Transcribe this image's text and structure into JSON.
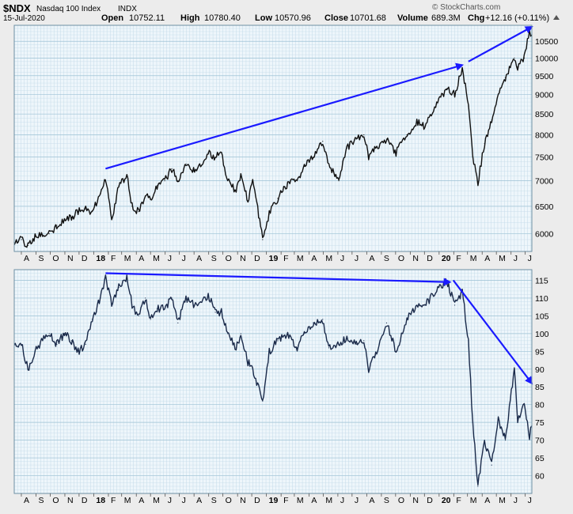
{
  "header": {
    "symbol": "$NDX",
    "name": "Nasdaq 100 Index",
    "exchange": "INDX",
    "date": "15-Jul-2020",
    "watermark": "© StockCharts.com",
    "open_label": "Open",
    "open_value": "10752.11",
    "high_label": "High",
    "high_value": "10780.40",
    "low_label": "Low",
    "low_value": "10570.96",
    "close_label": "Close",
    "close_value": "10701.68",
    "volume_label": "Volume",
    "volume_value": "689.3M",
    "chg_label": "Chg",
    "chg_value": "+12.16 (+0.11%)",
    "chg_direction_icon": "triangle-up-icon"
  },
  "x_axis_labels": [
    "A",
    "S",
    "O",
    "N",
    "D",
    "18",
    "F",
    "M",
    "A",
    "M",
    "J",
    "J",
    "A",
    "S",
    "O",
    "N",
    "D",
    "19",
    "F",
    "M",
    "A",
    "M",
    "J",
    "J",
    "A",
    "S",
    "O",
    "N",
    "D",
    "20",
    "F",
    "M",
    "A",
    "M",
    "J",
    "J"
  ],
  "x_axis_bold": [
    "18",
    "19",
    "20"
  ],
  "colors": {
    "panel_bg": "#eef6fb",
    "grid": "#c4dbe8",
    "price_line": "#111111",
    "lower_line": "#1a2a4a",
    "trend_arrow": "#1a1aff",
    "page_bg": "#ececec"
  },
  "chart_data": [
    {
      "type": "line",
      "panel": "price",
      "scale": "log",
      "ylim": [
        5700,
        11000
      ],
      "yticks": [
        6000,
        6500,
        7000,
        7500,
        8000,
        8500,
        9000,
        9500,
        10000,
        10500
      ],
      "x_start": "2017-07-17",
      "x_end": "2020-07-15",
      "points": [
        [
          "2017-07-17",
          5850
        ],
        [
          "2017-08-01",
          5900
        ],
        [
          "2017-08-15",
          5800
        ],
        [
          "2017-08-30",
          5950
        ],
        [
          "2017-09-15",
          5980
        ],
        [
          "2017-09-29",
          6000
        ],
        [
          "2017-10-15",
          6150
        ],
        [
          "2017-10-31",
          6250
        ],
        [
          "2017-11-15",
          6300
        ],
        [
          "2017-11-29",
          6400
        ],
        [
          "2017-12-15",
          6450
        ],
        [
          "2017-12-29",
          6400
        ],
        [
          "2018-01-15",
          6750
        ],
        [
          "2018-01-26",
          7020
        ],
        [
          "2018-02-08",
          6250
        ],
        [
          "2018-02-23",
          6900
        ],
        [
          "2018-03-12",
          7100
        ],
        [
          "2018-03-23",
          6500
        ],
        [
          "2018-04-06",
          6400
        ],
        [
          "2018-04-20",
          6700
        ],
        [
          "2018-05-01",
          6650
        ],
        [
          "2018-05-15",
          6900
        ],
        [
          "2018-05-31",
          7000
        ],
        [
          "2018-06-15",
          7250
        ],
        [
          "2018-06-28",
          7000
        ],
        [
          "2018-07-15",
          7350
        ],
        [
          "2018-07-31",
          7200
        ],
        [
          "2018-08-15",
          7300
        ],
        [
          "2018-08-31",
          7600
        ],
        [
          "2018-09-15",
          7500
        ],
        [
          "2018-09-28",
          7600
        ],
        [
          "2018-10-11",
          7000
        ],
        [
          "2018-10-29",
          6800
        ],
        [
          "2018-11-08",
          7100
        ],
        [
          "2018-11-23",
          6600
        ],
        [
          "2018-12-03",
          7000
        ],
        [
          "2018-12-24",
          5900
        ],
        [
          "2019-01-07",
          6350
        ],
        [
          "2019-01-25",
          6650
        ],
        [
          "2019-02-15",
          6950
        ],
        [
          "2019-03-07",
          7000
        ],
        [
          "2019-03-22",
          7300
        ],
        [
          "2019-04-10",
          7500
        ],
        [
          "2019-04-30",
          7850
        ],
        [
          "2019-05-13",
          7350
        ],
        [
          "2019-06-03",
          7000
        ],
        [
          "2019-06-20",
          7700
        ],
        [
          "2019-07-10",
          7900
        ],
        [
          "2019-07-26",
          8000
        ],
        [
          "2019-08-05",
          7500
        ],
        [
          "2019-08-20",
          7700
        ],
        [
          "2019-09-12",
          7900
        ],
        [
          "2019-10-02",
          7600
        ],
        [
          "2019-10-25",
          8000
        ],
        [
          "2019-11-15",
          8300
        ],
        [
          "2019-12-02",
          8200
        ],
        [
          "2019-12-27",
          8750
        ],
        [
          "2020-01-17",
          9150
        ],
        [
          "2020-02-03",
          9000
        ],
        [
          "2020-02-19",
          9700
        ],
        [
          "2020-03-03",
          8700
        ],
        [
          "2020-03-12",
          7500
        ],
        [
          "2020-03-23",
          6950
        ],
        [
          "2020-04-06",
          7800
        ],
        [
          "2020-04-21",
          8350
        ],
        [
          "2020-05-05",
          9000
        ],
        [
          "2020-05-20",
          9450
        ],
        [
          "2020-06-08",
          10000
        ],
        [
          "2020-06-15",
          9750
        ],
        [
          "2020-06-29",
          10000
        ],
        [
          "2020-07-10",
          10800
        ],
        [
          "2020-07-15",
          10700
        ]
      ],
      "trend_arrows": [
        {
          "from": [
            "2018-01-26",
            7250
          ],
          "to": [
            "2020-02-19",
            9800
          ]
        },
        {
          "from": [
            "2020-03-03",
            9900
          ],
          "to": [
            "2020-07-15",
            10950
          ]
        }
      ]
    },
    {
      "type": "line",
      "panel": "lower",
      "scale": "linear",
      "ylim": [
        55,
        118
      ],
      "yticks": [
        60,
        65,
        70,
        75,
        80,
        85,
        90,
        95,
        100,
        105,
        110,
        115
      ],
      "x_start": "2017-07-17",
      "x_end": "2020-07-15",
      "points": [
        [
          "2017-07-17",
          96
        ],
        [
          "2017-08-01",
          97
        ],
        [
          "2017-08-15",
          90
        ],
        [
          "2017-08-30",
          95
        ],
        [
          "2017-09-15",
          98
        ],
        [
          "2017-09-29",
          100
        ],
        [
          "2017-10-15",
          97
        ],
        [
          "2017-10-31",
          100
        ],
        [
          "2017-11-15",
          98
        ],
        [
          "2017-11-29",
          95
        ],
        [
          "2017-12-15",
          97
        ],
        [
          "2017-12-29",
          104
        ],
        [
          "2018-01-15",
          110
        ],
        [
          "2018-01-26",
          116
        ],
        [
          "2018-02-08",
          108
        ],
        [
          "2018-02-23",
          113
        ],
        [
          "2018-03-12",
          116
        ],
        [
          "2018-03-23",
          108
        ],
        [
          "2018-04-06",
          105
        ],
        [
          "2018-04-20",
          110
        ],
        [
          "2018-05-01",
          104
        ],
        [
          "2018-05-15",
          107
        ],
        [
          "2018-05-31",
          107
        ],
        [
          "2018-06-15",
          110
        ],
        [
          "2018-06-28",
          103
        ],
        [
          "2018-07-15",
          110
        ],
        [
          "2018-07-31",
          108
        ],
        [
          "2018-08-15",
          109
        ],
        [
          "2018-08-31",
          111
        ],
        [
          "2018-09-15",
          106
        ],
        [
          "2018-09-28",
          106
        ],
        [
          "2018-10-11",
          100
        ],
        [
          "2018-10-29",
          96
        ],
        [
          "2018-11-08",
          100
        ],
        [
          "2018-11-23",
          92
        ],
        [
          "2018-12-03",
          90
        ],
        [
          "2018-12-24",
          81
        ],
        [
          "2019-01-07",
          95
        ],
        [
          "2019-01-25",
          98
        ],
        [
          "2019-02-15",
          100
        ],
        [
          "2019-03-07",
          96
        ],
        [
          "2019-03-22",
          100
        ],
        [
          "2019-04-10",
          103
        ],
        [
          "2019-04-30",
          104
        ],
        [
          "2019-05-13",
          96
        ],
        [
          "2019-06-03",
          97
        ],
        [
          "2019-06-20",
          99
        ],
        [
          "2019-07-10",
          97
        ],
        [
          "2019-07-26",
          98
        ],
        [
          "2019-08-05",
          90
        ],
        [
          "2019-08-20",
          94
        ],
        [
          "2019-09-12",
          103
        ],
        [
          "2019-10-02",
          95
        ],
        [
          "2019-10-25",
          104
        ],
        [
          "2019-11-15",
          108
        ],
        [
          "2019-12-02",
          108
        ],
        [
          "2019-12-27",
          112
        ],
        [
          "2020-01-17",
          115
        ],
        [
          "2020-02-03",
          108
        ],
        [
          "2020-02-19",
          112
        ],
        [
          "2020-03-03",
          98
        ],
        [
          "2020-03-12",
          75
        ],
        [
          "2020-03-23",
          57
        ],
        [
          "2020-04-06",
          70
        ],
        [
          "2020-04-21",
          63
        ],
        [
          "2020-05-05",
          76
        ],
        [
          "2020-05-20",
          70
        ],
        [
          "2020-06-08",
          90
        ],
        [
          "2020-06-15",
          75
        ],
        [
          "2020-06-29",
          80
        ],
        [
          "2020-07-10",
          71
        ],
        [
          "2020-07-15",
          74
        ]
      ],
      "trend_arrows": [
        {
          "from": [
            "2018-01-26",
            117
          ],
          "to": [
            "2020-01-24",
            114.5
          ]
        },
        {
          "from": [
            "2020-01-31",
            115
          ],
          "to": [
            "2020-07-15",
            86
          ]
        }
      ]
    }
  ]
}
